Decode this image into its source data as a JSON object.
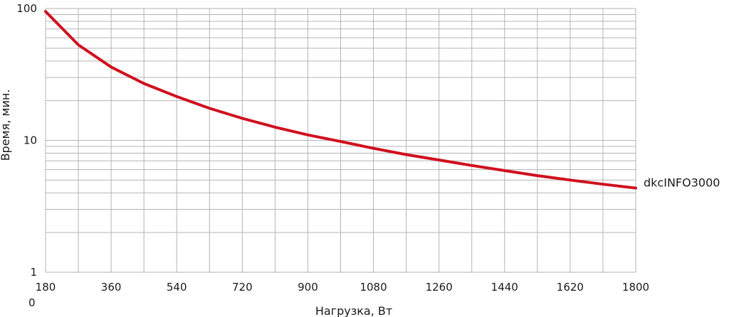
{
  "chart_data": {
    "type": "line",
    "xlabel": "Нагрузка, Вт",
    "ylabel": "Время, мин.",
    "xlim": [
      180,
      1800
    ],
    "ylim": [
      1,
      100
    ],
    "y_scale": "log",
    "grid": true,
    "x_ticks": [
      "180",
      "360",
      "540",
      "720",
      "900",
      "1080",
      "1260",
      "1440",
      "1620",
      "1800"
    ],
    "x_sub_label": "0",
    "y_ticks": [
      "1",
      "10",
      "100"
    ],
    "colors": {
      "series": "#d0101f",
      "grid": "#b4b4b4",
      "text": "#1a1a1a"
    },
    "series": [
      {
        "name": "dkcINFO3000",
        "x": [
          180,
          270,
          360,
          450,
          540,
          630,
          720,
          810,
          900,
          990,
          1080,
          1170,
          1260,
          1350,
          1440,
          1530,
          1620,
          1710,
          1800
        ],
        "y": [
          95,
          53,
          36,
          27,
          21.5,
          17.5,
          14.7,
          12.6,
          11,
          9.8,
          8.7,
          7.8,
          7.1,
          6.45,
          5.9,
          5.4,
          5,
          4.65,
          4.35
        ]
      }
    ]
  }
}
